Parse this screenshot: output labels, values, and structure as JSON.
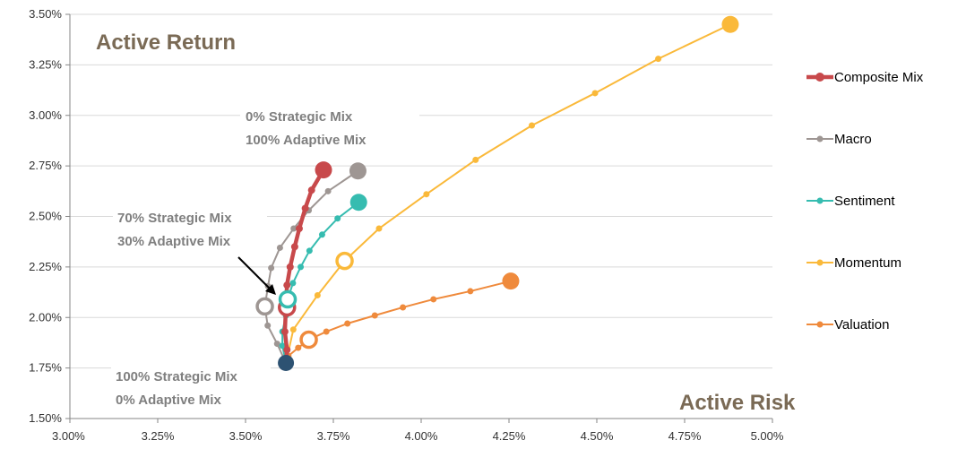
{
  "chart_data": {
    "type": "line",
    "x_axis": {
      "label": "Active Risk",
      "range": [
        0.03,
        0.05
      ],
      "ticks": [
        "3.00%",
        "3.25%",
        "3.50%",
        "3.75%",
        "4.00%",
        "4.25%",
        "4.50%",
        "4.75%",
        "5.00%"
      ]
    },
    "y_axis": {
      "label": "Active Return",
      "range": [
        0.015,
        0.035
      ],
      "ticks": [
        "1.50%",
        "1.75%",
        "2.00%",
        "2.25%",
        "2.50%",
        "2.75%",
        "3.00%",
        "3.25%",
        "3.50%"
      ]
    },
    "grid": "horizontal",
    "legend_position": "right",
    "start_point": {
      "x": 0.03615,
      "y": 0.01775,
      "color": "#2d5272"
    },
    "series": [
      {
        "name": "Composite Mix",
        "color": "#c8494b",
        "points": [
          [
            0.03615,
            0.01775
          ],
          [
            0.03618,
            0.0184
          ],
          [
            0.03612,
            0.0193
          ],
          [
            0.03615,
            0.0205
          ],
          [
            0.03618,
            0.0216
          ],
          [
            0.03627,
            0.0225
          ],
          [
            0.0364,
            0.0235
          ],
          [
            0.03653,
            0.0244
          ],
          [
            0.0367,
            0.0254
          ],
          [
            0.03688,
            0.0263
          ],
          [
            0.03722,
            0.0273
          ]
        ],
        "marker_point": [
          0.03618,
          0.0205
        ]
      },
      {
        "name": "Macro",
        "color": "#9e9693",
        "points": [
          [
            0.03615,
            0.01775
          ],
          [
            0.0359,
            0.0187
          ],
          [
            0.03563,
            0.0196
          ],
          [
            0.03555,
            0.02055
          ],
          [
            0.03564,
            0.02155
          ],
          [
            0.03573,
            0.02245
          ],
          [
            0.03598,
            0.02345
          ],
          [
            0.03637,
            0.0244
          ],
          [
            0.0368,
            0.0253
          ],
          [
            0.03735,
            0.02625
          ],
          [
            0.0382,
            0.02725
          ]
        ],
        "marker_point": [
          0.03555,
          0.02055
        ]
      },
      {
        "name": "Sentiment",
        "color": "#36bcb0",
        "points": [
          [
            0.03615,
            0.01775
          ],
          [
            0.03605,
            0.0186
          ],
          [
            0.03605,
            0.0193
          ],
          [
            0.03615,
            0.0201
          ],
          [
            0.0362,
            0.0209
          ],
          [
            0.03635,
            0.0217
          ],
          [
            0.03657,
            0.0225
          ],
          [
            0.03682,
            0.0233
          ],
          [
            0.03718,
            0.0241
          ],
          [
            0.03762,
            0.0249
          ],
          [
            0.03822,
            0.0257
          ]
        ],
        "marker_point": [
          0.0362,
          0.0209
        ]
      },
      {
        "name": "Momentum",
        "color": "#fab93a",
        "points": [
          [
            0.03615,
            0.01775
          ],
          [
            0.03636,
            0.0194
          ],
          [
            0.03705,
            0.0211
          ],
          [
            0.03782,
            0.0228
          ],
          [
            0.0388,
            0.0244
          ],
          [
            0.04015,
            0.0261
          ],
          [
            0.04155,
            0.0278
          ],
          [
            0.04315,
            0.0295
          ],
          [
            0.04495,
            0.0311
          ],
          [
            0.04675,
            0.0328
          ],
          [
            0.0488,
            0.0345
          ]
        ],
        "marker_point": [
          0.03782,
          0.0228
        ]
      },
      {
        "name": "Valuation",
        "color": "#ef8a3c",
        "points": [
          [
            0.03615,
            0.01775
          ],
          [
            0.03622,
            0.0181
          ],
          [
            0.0365,
            0.0185
          ],
          [
            0.0368,
            0.0189
          ],
          [
            0.0373,
            0.0193
          ],
          [
            0.0379,
            0.0197
          ],
          [
            0.03868,
            0.0201
          ],
          [
            0.03948,
            0.0205
          ],
          [
            0.04035,
            0.0209
          ],
          [
            0.0414,
            0.0213
          ],
          [
            0.04255,
            0.0218
          ]
        ],
        "marker_point": [
          0.0368,
          0.0189
        ]
      }
    ],
    "annotations": [
      {
        "lines": [
          "0% Strategic Mix",
          "100% Adaptive Mix"
        ]
      },
      {
        "lines": [
          "70% Strategic Mix",
          "30% Adaptive Mix"
        ]
      },
      {
        "lines": [
          "100% Strategic Mix",
          "0% Adaptive Mix"
        ]
      }
    ]
  }
}
